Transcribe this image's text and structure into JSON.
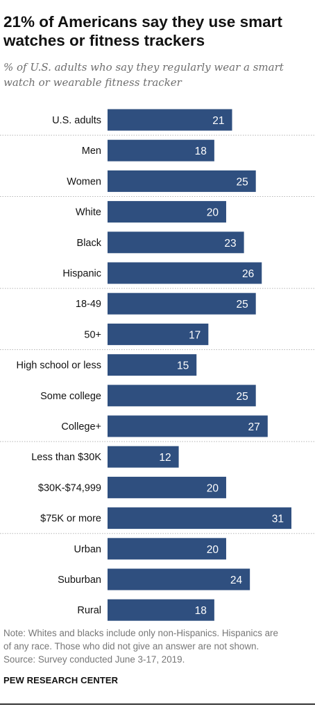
{
  "title_lines": [
    "21% of Americans say they use smart",
    "watches or fitness trackers"
  ],
  "subtitle_lines": [
    "% of U.S. adults who say they regularly wear a smart",
    "watch or wearable fitness tracker"
  ],
  "note_lines": [
    "Note: Whites and blacks include only non-Hispanics. Hispanics are",
    "of any race. Those who did not give an answer are not shown."
  ],
  "source": "Source: Survey conducted June 3-17, 2019.",
  "brand": "PEW RESEARCH CENTER",
  "colors": {
    "bar": "#2f4f7f",
    "bar_label": "#ffffff",
    "divider": "#b5b5b5"
  },
  "chart_data": {
    "type": "bar",
    "orientation": "horizontal",
    "categories": [
      "U.S. adults",
      "Men",
      "Women",
      "White",
      "Black",
      "Hispanic",
      "18-49",
      "50+",
      "High school or less",
      "Some college",
      "College+",
      "Less than $30K",
      "$30K-$74,999",
      "$75K or more",
      "Urban",
      "Suburban",
      "Rural"
    ],
    "values": [
      21,
      18,
      25,
      20,
      23,
      26,
      25,
      17,
      15,
      25,
      27,
      12,
      20,
      31,
      20,
      24,
      18
    ],
    "groups": [
      [
        "U.S. adults"
      ],
      [
        "Men",
        "Women"
      ],
      [
        "White",
        "Black",
        "Hispanic"
      ],
      [
        "18-49",
        "50+"
      ],
      [
        "High school or less",
        "Some college",
        "College+"
      ],
      [
        "Less than $30K",
        "$30K-$74,999",
        "$75K or more"
      ],
      [
        "Urban",
        "Suburban",
        "Rural"
      ]
    ],
    "xlim": [
      0,
      31
    ],
    "grid": false,
    "data_labels": true
  }
}
